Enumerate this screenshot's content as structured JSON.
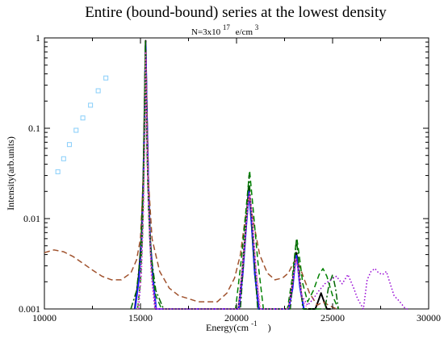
{
  "chart_data": {
    "type": "line",
    "title": "Entire (bound-bound) series at the lowest density",
    "subtitle": {
      "base": "N=3x10",
      "exponent": "17",
      "unit": "e/cm",
      "unit_exponent": "3"
    },
    "xlabel": {
      "base": "Energy(cm",
      "exponent": "-1",
      "close": ")"
    },
    "ylabel": "Intensity(arb.units)",
    "x_scale": "linear",
    "y_scale": "log",
    "xlim": [
      10000,
      30000
    ],
    "ylim": [
      0.001,
      1
    ],
    "x_ticks": [
      {
        "value": 10000,
        "label": "10000"
      },
      {
        "value": 15000,
        "label": "15000"
      },
      {
        "value": 20000,
        "label": "20000"
      },
      {
        "value": 25000,
        "label": "25000"
      },
      {
        "value": 30000,
        "label": "30000"
      }
    ],
    "y_ticks": [
      {
        "value": 0.001,
        "label": "0.001"
      },
      {
        "value": 0.01,
        "label": "0.01"
      },
      {
        "value": 0.1,
        "label": "0.1"
      },
      {
        "value": 1,
        "label": "1"
      }
    ],
    "grid": false,
    "legend": "none",
    "series": [
      {
        "style": "solid",
        "color": "#000000",
        "width": 2,
        "x": [
          14700,
          14900,
          15050,
          15150,
          15220,
          15270,
          15320,
          15400,
          15500,
          15650,
          15800,
          20100,
          20300,
          20500,
          20640,
          20780,
          20950,
          21150,
          22700,
          22900,
          23050,
          23100,
          23150,
          23300,
          23500,
          24100,
          24300,
          24400,
          24500,
          24700,
          24900
        ],
        "y": [
          0.001,
          0.0022,
          0.006,
          0.03,
          0.2,
          0.93,
          0.2,
          0.03,
          0.006,
          0.0022,
          0.001,
          0.001,
          0.0025,
          0.009,
          0.022,
          0.009,
          0.0025,
          0.001,
          0.001,
          0.0018,
          0.0038,
          0.0042,
          0.0038,
          0.0018,
          0.001,
          0.001,
          0.0013,
          0.0015,
          0.0013,
          0.001,
          0.001
        ]
      },
      {
        "style": "solid",
        "color": "#1f1fff",
        "width": 2,
        "x": [
          14720,
          14920,
          15060,
          15160,
          15225,
          15275,
          15325,
          15405,
          15505,
          15655,
          15820,
          20120,
          20320,
          20510,
          20650,
          20790,
          20960,
          21160,
          22720,
          22920,
          23060,
          23110,
          23160,
          23310,
          23510
        ],
        "y": [
          0.001,
          0.0021,
          0.0055,
          0.028,
          0.19,
          0.88,
          0.19,
          0.028,
          0.0055,
          0.0021,
          0.001,
          0.001,
          0.0024,
          0.0085,
          0.02,
          0.0085,
          0.0024,
          0.001,
          0.001,
          0.0017,
          0.0035,
          0.0039,
          0.0035,
          0.0017,
          0.001
        ]
      },
      {
        "style": "dashed",
        "color": "#a0522d",
        "width": 1.5,
        "x": [
          10000,
          10500,
          11000,
          11500,
          12000,
          12500,
          13000,
          13500,
          14000,
          14500,
          14800,
          15000,
          15150,
          15270,
          15400,
          15600,
          16000,
          16500,
          17000,
          17500,
          18000,
          18500,
          19000,
          19500,
          19900,
          20200,
          20450,
          20650,
          20850,
          21200,
          21600,
          22000,
          22400,
          22700,
          22950,
          23100,
          23250,
          23500,
          23800,
          24200,
          24500,
          24800,
          25200
        ],
        "y": [
          0.0042,
          0.0045,
          0.0043,
          0.0038,
          0.0032,
          0.0027,
          0.0023,
          0.0021,
          0.0021,
          0.0025,
          0.0035,
          0.006,
          0.03,
          0.9,
          0.03,
          0.006,
          0.0026,
          0.0017,
          0.0014,
          0.0013,
          0.0012,
          0.0012,
          0.0012,
          0.0015,
          0.0022,
          0.004,
          0.01,
          0.018,
          0.01,
          0.004,
          0.0025,
          0.0021,
          0.0022,
          0.0025,
          0.0032,
          0.0035,
          0.0031,
          0.0022,
          0.0015,
          0.0011,
          0.0012,
          0.0011,
          0.001
        ]
      },
      {
        "style": "dashed",
        "color": "#008000",
        "width": 1.5,
        "x": [
          14850,
          15000,
          15120,
          15200,
          15260,
          15320,
          15420,
          15560,
          15800,
          16100,
          19950,
          20250,
          20500,
          20680,
          20860,
          21100,
          21400,
          22650,
          22900,
          23080,
          23150,
          23260,
          23450,
          23700,
          24000,
          24300,
          24500,
          24700,
          25000,
          25300
        ],
        "y": [
          0.001,
          0.002,
          0.008,
          0.08,
          0.85,
          0.08,
          0.012,
          0.003,
          0.0014,
          0.001,
          0.001,
          0.0035,
          0.013,
          0.034,
          0.013,
          0.0035,
          0.001,
          0.001,
          0.0022,
          0.005,
          0.0058,
          0.004,
          0.0019,
          0.0012,
          0.0016,
          0.0024,
          0.0028,
          0.0023,
          0.0014,
          0.001
        ]
      },
      {
        "style": "dash-dot",
        "color": "#006400",
        "width": 1.5,
        "x": [
          14500,
          14800,
          15000,
          15150,
          15260,
          15380,
          15550,
          15800,
          16200,
          20200,
          20450,
          20650,
          20850,
          21100,
          22800,
          23000,
          23120,
          23250,
          23450,
          24600,
          24800,
          25000,
          25150,
          25300
        ],
        "y": [
          0.001,
          0.0016,
          0.004,
          0.025,
          0.95,
          0.025,
          0.004,
          0.0016,
          0.001,
          0.001,
          0.006,
          0.03,
          0.006,
          0.001,
          0.001,
          0.003,
          0.006,
          0.003,
          0.001,
          0.001,
          0.0018,
          0.0024,
          0.0017,
          0.001
        ]
      },
      {
        "style": "dotted",
        "color": "#9400d3",
        "width": 1.5,
        "x": [
          14900,
          15050,
          15170,
          15240,
          15280,
          15330,
          15420,
          15560,
          15750,
          20150,
          20400,
          20600,
          20700,
          20800,
          21000,
          21200,
          22750,
          22950,
          23100,
          23250,
          23400,
          23700,
          24000,
          24300,
          24600,
          24900,
          25200,
          25500,
          25800,
          26100,
          26300,
          26600,
          26800,
          27000,
          27200,
          27400,
          27600,
          27800,
          28000,
          28200,
          28500,
          28800,
          29000
        ],
        "y": [
          0.001,
          0.0025,
          0.015,
          0.12,
          0.6,
          0.12,
          0.015,
          0.0025,
          0.001,
          0.001,
          0.004,
          0.015,
          0.018,
          0.012,
          0.003,
          0.001,
          0.001,
          0.002,
          0.0036,
          0.0025,
          0.0014,
          0.0011,
          0.0013,
          0.0016,
          0.0019,
          0.0021,
          0.0023,
          0.0019,
          0.0024,
          0.0017,
          0.0013,
          0.001,
          0.0021,
          0.0026,
          0.0028,
          0.0025,
          0.0024,
          0.0026,
          0.0019,
          0.0014,
          0.0012,
          0.001,
          0.001
        ]
      },
      {
        "style": "dotted",
        "color": "#ff69b4",
        "width": 1.5,
        "x": [
          14850,
          15000,
          15150,
          15230,
          15270,
          15320,
          15430,
          15580,
          15800,
          20100,
          20350,
          20580,
          20680,
          20780,
          21000,
          21250,
          22700,
          22920,
          23080,
          23230,
          23420,
          23700
        ],
        "y": [
          0.001,
          0.0022,
          0.012,
          0.1,
          0.7,
          0.1,
          0.012,
          0.0022,
          0.001,
          0.001,
          0.0038,
          0.014,
          0.019,
          0.012,
          0.003,
          0.001,
          0.001,
          0.0021,
          0.0037,
          0.0025,
          0.0013,
          0.001
        ]
      },
      {
        "style": "markers",
        "color": "#87cefa",
        "marker": "open-square",
        "x": [
          10700,
          11000,
          11300,
          11650,
          12000,
          12400,
          12800,
          13200
        ],
        "y": [
          0.033,
          0.046,
          0.066,
          0.095,
          0.13,
          0.18,
          0.26,
          0.36
        ]
      }
    ]
  }
}
